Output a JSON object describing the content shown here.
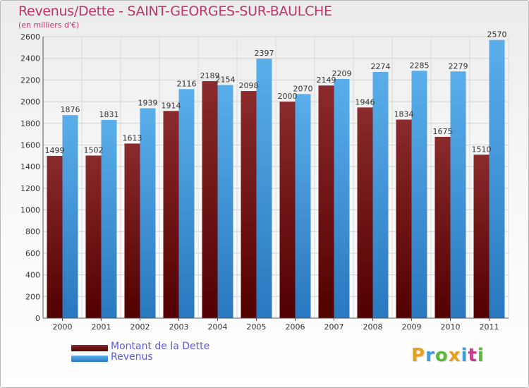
{
  "header": {
    "title": "Revenus/Dette - SAINT-GEORGES-SUR-BAULCHE",
    "subtitle": "(en milliers d'€)"
  },
  "logo": {
    "letters": [
      "P",
      "r",
      "o",
      "x",
      "i",
      "t",
      "i"
    ],
    "colors": [
      "#e8a020",
      "#3c9ee0",
      "#5cb83a",
      "#e8a020",
      "#3c9ee0",
      "#c04090",
      "#5cb83a"
    ]
  },
  "chart_data": {
    "type": "bar",
    "title": "Revenus/Dette - SAINT-GEORGES-SUR-BAULCHE",
    "ylabel": "(en milliers d'€)",
    "ylim": [
      0,
      2600
    ],
    "ytick_step": 200,
    "grid": true,
    "legend_position": "bottom-left",
    "categories": [
      "2000",
      "2001",
      "2002",
      "2003",
      "2004",
      "2005",
      "2006",
      "2007",
      "2008",
      "2009",
      "2010",
      "2011"
    ],
    "series": [
      {
        "name": "Montant de la Dette",
        "color": "#7a1a1a",
        "values": [
          1499,
          1502,
          1613,
          1914,
          2189,
          2098,
          2000,
          2149,
          1946,
          1834,
          1675,
          1510
        ]
      },
      {
        "name": "Revenus",
        "color": "#4aa0e4",
        "values": [
          1876,
          1831,
          1939,
          2116,
          2154,
          2397,
          2070,
          2209,
          2274,
          2285,
          2279,
          2570
        ]
      }
    ]
  }
}
